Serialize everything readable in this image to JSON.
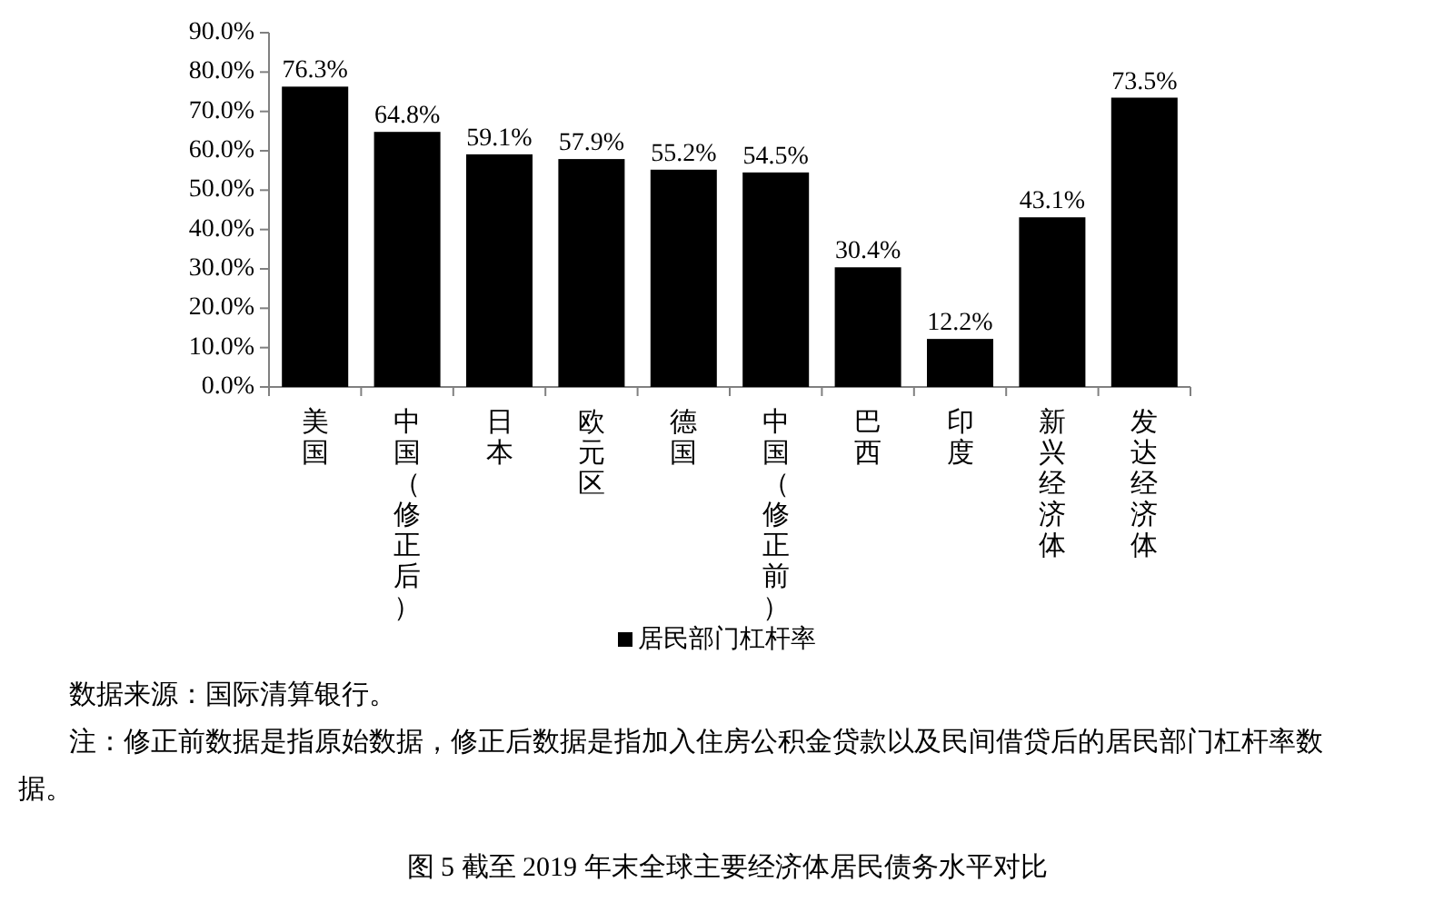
{
  "chart_data": {
    "type": "bar",
    "categories": [
      "美国",
      "中国（修正后）",
      "日本",
      "欧元区",
      "德国",
      "中国（修正前）",
      "巴西",
      "印度",
      "新兴经济体",
      "发达经济体"
    ],
    "series": [
      {
        "name": "居民部门杠杆率",
        "color": "#000000",
        "values": [
          76.3,
          64.8,
          59.1,
          57.9,
          55.2,
          54.5,
          30.4,
          12.2,
          43.1,
          73.5
        ],
        "value_labels": [
          "76.3%",
          "64.8%",
          "59.1%",
          "57.9%",
          "55.2%",
          "54.5%",
          "30.4%",
          "12.2%",
          "43.1%",
          "73.5%"
        ]
      }
    ],
    "ylim": [
      0,
      90
    ],
    "yticks": [
      {
        "value": 0,
        "label": "0.0%"
      },
      {
        "value": 10,
        "label": "10.0%"
      },
      {
        "value": 20,
        "label": "20.0%"
      },
      {
        "value": 30,
        "label": "30.0%"
      },
      {
        "value": 40,
        "label": "40.0%"
      },
      {
        "value": 50,
        "label": "50.0%"
      },
      {
        "value": 60,
        "label": "60.0%"
      },
      {
        "value": 70,
        "label": "70.0%"
      },
      {
        "value": 80,
        "label": "80.0%"
      },
      {
        "value": 90,
        "label": "90.0%"
      }
    ],
    "legend": "bottom",
    "annotations": [
      "数据来源：国际清算银行。",
      "注：修正前数据是指原始数据，修正后数据是指加入住房公积金贷款以及民间借贷后的居民部门杠杆率数据。",
      "图 5  截至 2019 年末全球主要经济体居民债务水平对比"
    ]
  }
}
